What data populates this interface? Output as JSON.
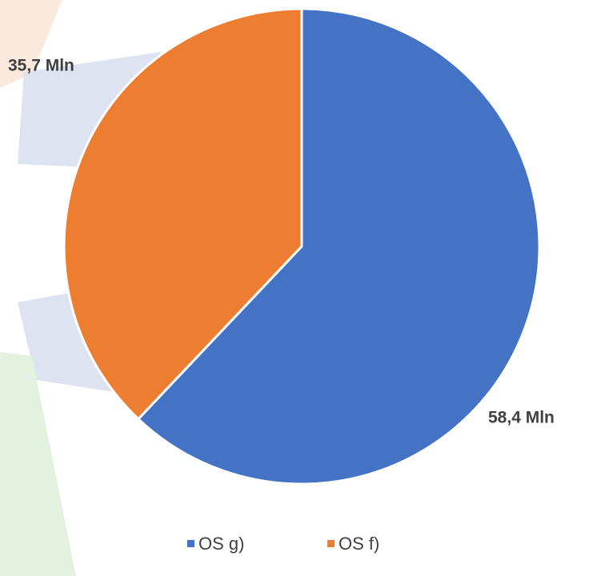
{
  "chart_data": {
    "type": "pie",
    "categories": [
      "OS g)",
      "OS f)"
    ],
    "values": [
      58.4,
      35.7
    ],
    "value_labels": [
      "58,4 Mln",
      "35,7 Mln"
    ],
    "colors": [
      "#4472c4",
      "#ed7d31"
    ],
    "legend": "bottom"
  }
}
